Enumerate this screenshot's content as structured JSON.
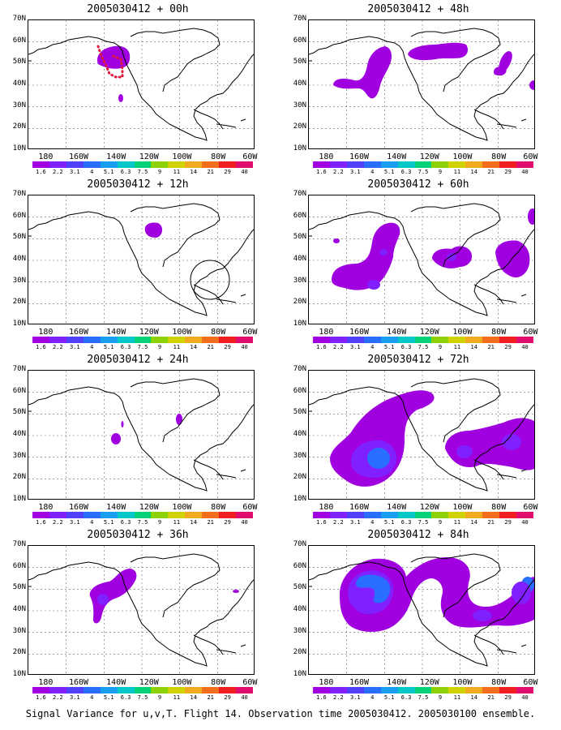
{
  "caption": "Signal Variance for u,v,T. Flight 14. Observation time 2005030412. 2005030100 ensemble.",
  "lat_labels": [
    "70N",
    "60N",
    "50N",
    "40N",
    "30N",
    "20N",
    "10N"
  ],
  "lon_labels": [
    "180",
    "160W",
    "140W",
    "120W",
    "100W",
    "80W",
    "60W"
  ],
  "colorbar": {
    "levels": [
      "1.6",
      "2.2",
      "3.1",
      "4",
      "5.1",
      "6.3",
      "7.5",
      "9",
      "11",
      "14",
      "21",
      "29",
      "40"
    ],
    "colors": [
      "#a000e0",
      "#8020ff",
      "#5040ff",
      "#2a6eff",
      "#1a9ef2",
      "#00c8c8",
      "#00d27a",
      "#8cd200",
      "#d2d200",
      "#f0aa1e",
      "#f06e1e",
      "#f01e1e",
      "#e00c6e"
    ]
  },
  "panels": [
    {
      "title": "2005030412 + 00h"
    },
    {
      "title": "2005030412 + 48h"
    },
    {
      "title": "2005030412 + 12h"
    },
    {
      "title": "2005030412 + 60h"
    },
    {
      "title": "2005030412 + 24h"
    },
    {
      "title": "2005030412 + 72h"
    },
    {
      "title": "2005030412 + 36h"
    },
    {
      "title": "2005030412 + 84h"
    }
  ]
}
